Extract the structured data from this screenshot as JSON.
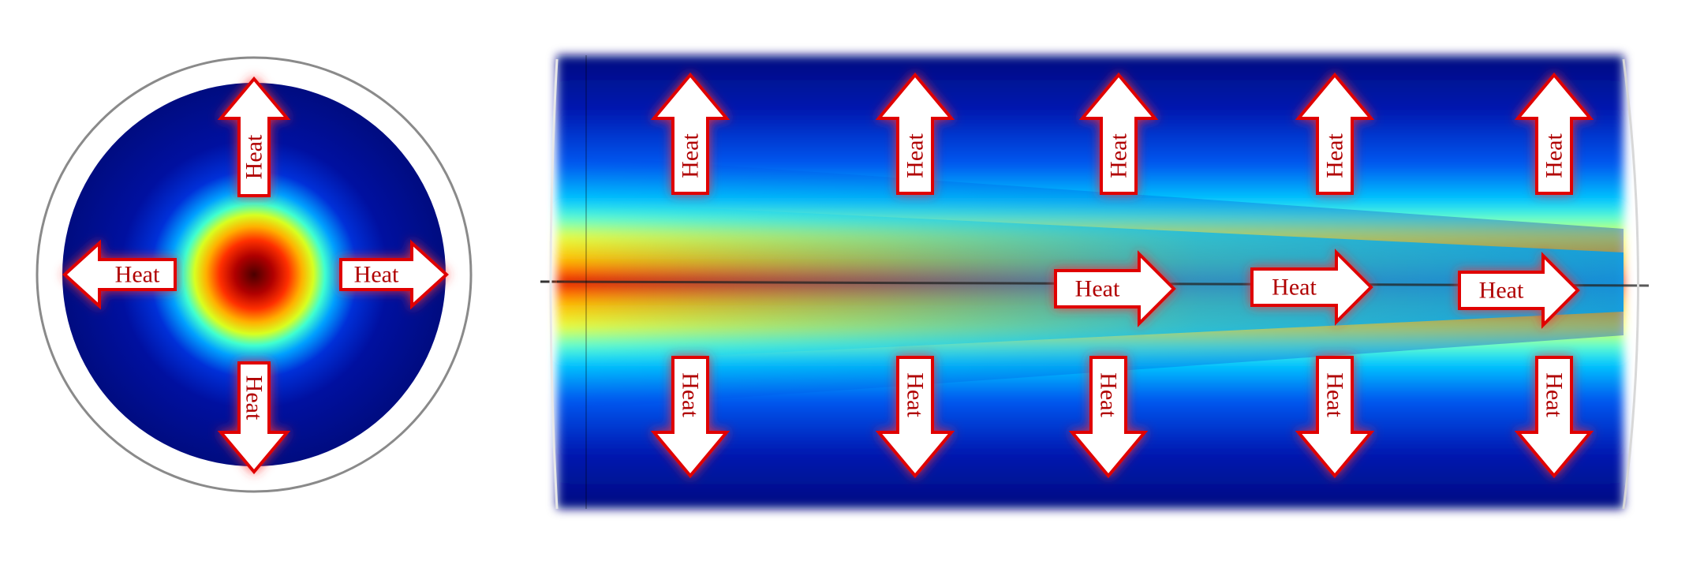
{
  "cross_section": {
    "name": "fiber-cross-section",
    "colors": {
      "outer_ring": "#8a8a8a",
      "core_hot": "#8b0000",
      "cladding": "#0a0a8c"
    },
    "arrows": [
      {
        "direction": "up",
        "label": "Heat"
      },
      {
        "direction": "down",
        "label": "Heat"
      },
      {
        "direction": "left",
        "label": "Heat"
      },
      {
        "direction": "right",
        "label": "Heat"
      }
    ]
  },
  "longitudinal_section": {
    "name": "fiber-longitudinal-section",
    "colors": {
      "core_hot": "#b00000",
      "mid": "#ffff00",
      "cool": "#00c8ff",
      "cold": "#0a0a8c"
    },
    "arrows_up": [
      {
        "label": "Heat"
      },
      {
        "label": "Heat"
      },
      {
        "label": "Heat"
      },
      {
        "label": "Heat"
      },
      {
        "label": "Heat"
      }
    ],
    "arrows_down": [
      {
        "label": "Heat"
      },
      {
        "label": "Heat"
      },
      {
        "label": "Heat"
      },
      {
        "label": "Heat"
      },
      {
        "label": "Heat"
      }
    ],
    "arrows_axial": [
      {
        "label": "Heat"
      },
      {
        "label": "Heat"
      },
      {
        "label": "Heat"
      }
    ]
  },
  "arrow_style": {
    "fill": "#ffffff",
    "stroke": "#e00000",
    "text": "#b00000",
    "glow": "#ff3030"
  }
}
